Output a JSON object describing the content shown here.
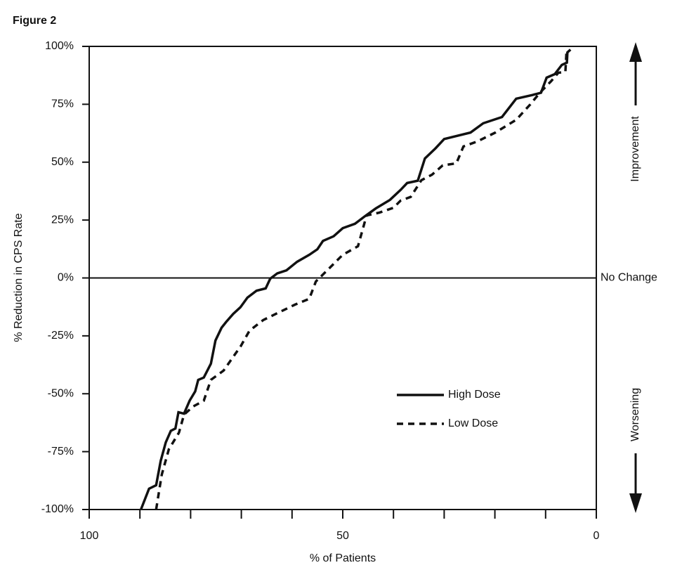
{
  "chart_data": {
    "type": "line",
    "figure_label": "Figure 2",
    "xlabel": "% of Patients",
    "ylabel": "% Reduction in CPS Rate",
    "xlim": [
      100,
      0
    ],
    "xticks": [
      100,
      50,
      0
    ],
    "xminorticks": [
      90,
      80,
      70,
      60,
      40,
      30,
      20,
      10
    ],
    "ylim": [
      -100,
      100
    ],
    "yticks": [
      {
        "value": -100,
        "label": "-100%"
      },
      {
        "value": -75,
        "label": "-75%"
      },
      {
        "value": -50,
        "label": "-50%"
      },
      {
        "value": -25,
        "label": "-25%"
      },
      {
        "value": 0,
        "label": "0%"
      },
      {
        "value": 25,
        "label": "25%"
      },
      {
        "value": 50,
        "label": "50%"
      },
      {
        "value": 75,
        "label": "75%"
      },
      {
        "value": 100,
        "label": "100%"
      }
    ],
    "reference_line": {
      "value": 0,
      "label": "No Change"
    },
    "annotations": {
      "up": "Improvement",
      "down": "Worsening"
    },
    "series": [
      {
        "name": "High Dose",
        "color": "#111111",
        "dash": "solid",
        "x": [
          89.8,
          88.2,
          86.8,
          85.9,
          84.9,
          83.9,
          83,
          82.4,
          81.3,
          80.2,
          79.1,
          78.5,
          77.4,
          76,
          75.1,
          73.9,
          73,
          71.6,
          70.2,
          68.8,
          67,
          65.2,
          64.3,
          62.9,
          61.1,
          59,
          56.6,
          55,
          53.9,
          51.8,
          50,
          47.6,
          45.6,
          43.5,
          40.7,
          38.6,
          37.3,
          35.2,
          33.8,
          31.7,
          30,
          27.6,
          24.8,
          22.3,
          18.6,
          15.8,
          12.6,
          10.9,
          9.8,
          8.2,
          6.8,
          5.8,
          5.7,
          5.1
        ],
        "values": [
          -100,
          -91,
          -89.5,
          -79,
          -71,
          -66,
          -65,
          -58,
          -58.6,
          -53,
          -49,
          -44,
          -43,
          -37,
          -27,
          -21.5,
          -19,
          -15.5,
          -12.7,
          -8.5,
          -5.5,
          -4.5,
          -0.3,
          2,
          3.3,
          7,
          10,
          12.4,
          16,
          18,
          21.5,
          23.4,
          26.7,
          30,
          33.7,
          38,
          41,
          42,
          51.6,
          56,
          60,
          61.3,
          62.8,
          66.8,
          69.5,
          77.4,
          79,
          80,
          86.5,
          88,
          92,
          93,
          97.4,
          98.6
        ]
      },
      {
        "name": "Low Dose",
        "color": "#111111",
        "dash": "dashed",
        "x": [
          86.8,
          85.7,
          84.3,
          82.3,
          81.3,
          79.5,
          77.4,
          76,
          73.5,
          71.9,
          70.1,
          68.4,
          65.7,
          62.9,
          59.4,
          56.6,
          55.3,
          53.2,
          50,
          47,
          45.3,
          42.8,
          40,
          38.6,
          36.6,
          34.5,
          32.4,
          30.3,
          27.6,
          26.2,
          23.4,
          19.9,
          15.8,
          13,
          11.2,
          8.9,
          7.5,
          6.1,
          5.9,
          5.1
        ],
        "values": [
          -100,
          -85,
          -74,
          -66.8,
          -59,
          -55.5,
          -53,
          -44,
          -40,
          -35,
          -29.4,
          -22.8,
          -18.2,
          -15.2,
          -11.5,
          -9,
          -1.5,
          3,
          10,
          13.7,
          27,
          28.2,
          30.3,
          33.4,
          35,
          42.2,
          44.6,
          48.6,
          49.5,
          56.8,
          59,
          62.8,
          68.3,
          75,
          79.8,
          85,
          88.6,
          89,
          97,
          98.6
        ]
      }
    ]
  }
}
